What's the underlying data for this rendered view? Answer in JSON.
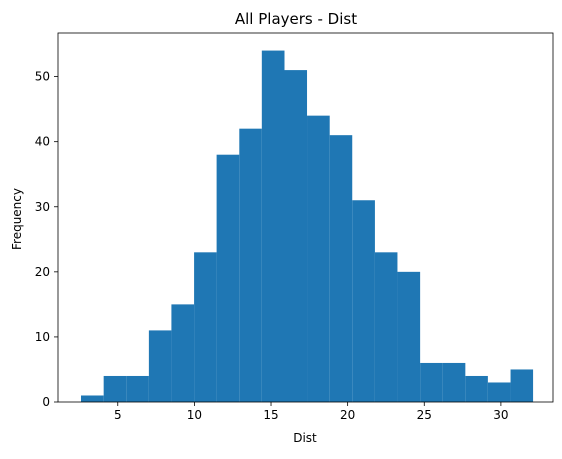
{
  "chart_data": {
    "type": "bar",
    "title": "All Players - Dist",
    "xlabel": "Dist",
    "ylabel": "Frequency",
    "bar_color": "#1f77b4",
    "grid": false,
    "xlim": [
      1.1,
      33.4
    ],
    "ylim": [
      0,
      56.7
    ],
    "x_ticks": [
      5,
      10,
      15,
      20,
      25,
      30
    ],
    "y_ticks": [
      0,
      10,
      20,
      30,
      40,
      50
    ],
    "bins": [
      {
        "start": 2.6,
        "end": 4.08,
        "count": 1
      },
      {
        "start": 4.08,
        "end": 5.55,
        "count": 4
      },
      {
        "start": 5.55,
        "end": 7.03,
        "count": 4
      },
      {
        "start": 7.03,
        "end": 8.5,
        "count": 11
      },
      {
        "start": 8.5,
        "end": 9.98,
        "count": 15
      },
      {
        "start": 9.98,
        "end": 11.45,
        "count": 23
      },
      {
        "start": 11.45,
        "end": 12.93,
        "count": 38
      },
      {
        "start": 12.93,
        "end": 14.4,
        "count": 42
      },
      {
        "start": 14.4,
        "end": 15.88,
        "count": 54
      },
      {
        "start": 15.88,
        "end": 17.35,
        "count": 51
      },
      {
        "start": 17.35,
        "end": 18.83,
        "count": 44
      },
      {
        "start": 18.83,
        "end": 20.3,
        "count": 41
      },
      {
        "start": 20.3,
        "end": 21.78,
        "count": 31
      },
      {
        "start": 21.78,
        "end": 23.25,
        "count": 23
      },
      {
        "start": 23.25,
        "end": 24.73,
        "count": 20
      },
      {
        "start": 24.73,
        "end": 26.2,
        "count": 6
      },
      {
        "start": 26.2,
        "end": 27.68,
        "count": 6
      },
      {
        "start": 27.68,
        "end": 29.15,
        "count": 4
      },
      {
        "start": 29.15,
        "end": 30.63,
        "count": 3
      },
      {
        "start": 30.63,
        "end": 32.1,
        "count": 5
      }
    ]
  }
}
